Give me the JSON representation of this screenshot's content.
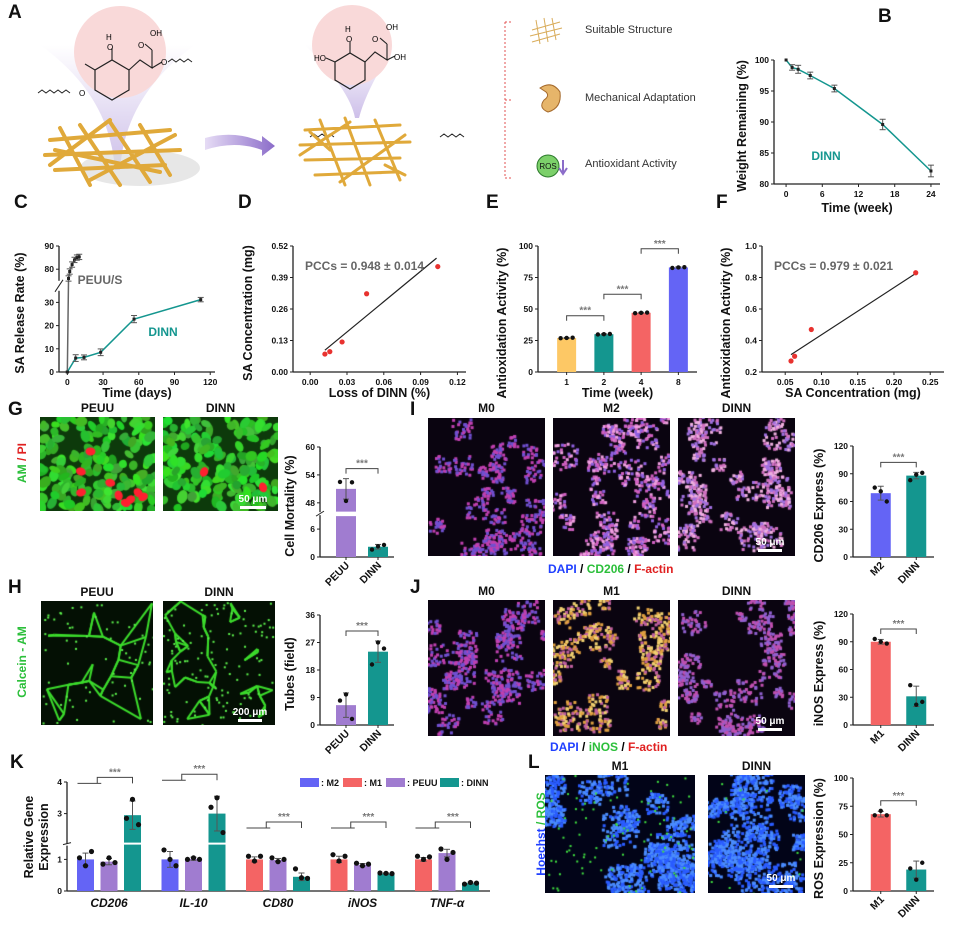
{
  "panel_labels": {
    "A": "A",
    "B": "B",
    "C": "C",
    "D": "D",
    "E": "E",
    "F": "F",
    "G": "G",
    "H": "H",
    "I": "I",
    "J": "J",
    "K": "K",
    "L": "L"
  },
  "colors": {
    "teal": "#14968f",
    "purple": "#a07cd0",
    "blue": "#6464f5",
    "red": "#f46464",
    "yellow": "#fdc865",
    "gray": "#666666",
    "scatter_red": "#e8322f",
    "green_text": "#2bbf3a",
    "red_text": "#e02020",
    "blue_text": "#2040ff"
  },
  "panel_A": {
    "molecule_before_atoms": [
      "H",
      "O",
      "OH",
      "O",
      "O",
      "O"
    ],
    "molecule_after_atoms": [
      "H",
      "O",
      "OH",
      "O",
      "OH",
      "HO"
    ],
    "features": [
      {
        "label": "Suitable Structure",
        "icon": "scaffold-icon"
      },
      {
        "label": "Mechanical Adaptation",
        "icon": "ear-icon"
      },
      {
        "label": "Antioxidant Activity",
        "icon": "ros-icon",
        "badge": "ROS"
      }
    ]
  },
  "micrographs": {
    "G": {
      "titles": [
        "PEUU",
        "DINN"
      ],
      "stain": [
        "AM",
        " / ",
        "PI"
      ],
      "scale_bar": "50 μm"
    },
    "H": {
      "titles": [
        "PEUU",
        "DINN"
      ],
      "stain": "Calcein - AM",
      "scale_bar": "200 μm"
    },
    "I": {
      "titles": [
        "M0",
        "M2",
        "DINN"
      ],
      "legend": [
        "DAPI",
        " / ",
        "CD206",
        " / ",
        "F-actin"
      ],
      "scale_bar": "50 μm"
    },
    "J": {
      "titles": [
        "M0",
        "M1",
        "DINN"
      ],
      "legend": [
        "DAPI",
        " / ",
        "iNOS",
        " / ",
        "F-actin"
      ],
      "scale_bar": "50 μm"
    },
    "L": {
      "titles": [
        "M1",
        "DINN"
      ],
      "stain": [
        "Hoechst",
        " / ",
        "ROS"
      ],
      "scale_bar": "50 μm"
    }
  },
  "chart_data": [
    {
      "id": "B",
      "type": "line",
      "xlabel": "Time (week)",
      "ylabel": "Weight Remaining (%)",
      "xlim": [
        0,
        24
      ],
      "ylim": [
        80,
        100
      ],
      "xticks": [
        0,
        6,
        12,
        18,
        24
      ],
      "yticks": [
        80,
        85,
        90,
        95,
        100
      ],
      "series": [
        {
          "name": "DINN",
          "color": "#14968f",
          "x": [
            0,
            1,
            2,
            4,
            8,
            16,
            24
          ],
          "y": [
            100,
            98.8,
            98.5,
            97.5,
            95.4,
            89.6,
            82.1
          ],
          "err": [
            0,
            0.2,
            0.4,
            0.3,
            0.3,
            0.6,
            0.7
          ]
        }
      ]
    },
    {
      "id": "C",
      "type": "line",
      "xlabel": "Time (days)",
      "ylabel": "SA Release Rate (%)",
      "xlim": [
        0,
        120
      ],
      "ybreak": [
        [
          0,
          35
        ],
        [
          75,
          90
        ]
      ],
      "xticks": [
        0,
        30,
        60,
        90,
        120
      ],
      "yticks": [
        0,
        10,
        20,
        30,
        80,
        90
      ],
      "series": [
        {
          "name": "PEUU/S",
          "color": "#666666",
          "x": [
            0,
            1,
            2,
            4,
            6,
            8,
            10
          ],
          "y": [
            0,
            76,
            79,
            82,
            84,
            85,
            85.3
          ],
          "err": [
            0,
            0.5,
            0.5,
            0.5,
            0.5,
            0.5,
            0.5
          ]
        },
        {
          "name": "DINN",
          "color": "#14968f",
          "x": [
            0,
            7,
            14,
            28,
            56,
            112
          ],
          "y": [
            0,
            6,
            6.3,
            8.5,
            22.8,
            31.2
          ],
          "err": [
            0,
            0.8,
            0.4,
            0.8,
            0.9,
            0.3
          ]
        }
      ]
    },
    {
      "id": "D",
      "type": "scatter",
      "xlabel": "Loss of DINN (%)",
      "ylabel": "SA Concentration (mg)",
      "xlim": [
        0,
        0.12
      ],
      "ylim": [
        0,
        0.52
      ],
      "xticks": [
        0.0,
        0.03,
        0.06,
        0.09,
        0.12
      ],
      "yticks": [
        0.0,
        0.13,
        0.26,
        0.39,
        0.52
      ],
      "tick_decimals": 2,
      "annotation": "PCCs = 0.948 ± 0.014",
      "points": {
        "x": [
          0.012,
          0.016,
          0.026,
          0.046,
          0.104
        ],
        "y": [
          0.074,
          0.084,
          0.124,
          0.323,
          0.435
        ]
      },
      "fit": {
        "x": [
          0.012,
          0.103
        ],
        "y": [
          0.09,
          0.47
        ]
      }
    },
    {
      "id": "E",
      "type": "bar",
      "xlabel": "Time (week)",
      "ylabel": "Antioxidation Activity (%)",
      "ylim": [
        0,
        100
      ],
      "yticks": [
        0,
        25,
        50,
        75,
        100
      ],
      "categories": [
        "1",
        "2",
        "4",
        "8"
      ],
      "values": [
        27,
        30,
        47,
        83
      ],
      "sd": [
        0.4,
        0.4,
        0.4,
        0.5
      ],
      "colors": [
        "#fdc865",
        "#14968f",
        "#f46464",
        "#6464f5"
      ],
      "replicates": [
        [
          26.8,
          27,
          27.2
        ],
        [
          29.8,
          30,
          30.2
        ],
        [
          46.7,
          47,
          47.2
        ],
        [
          82.6,
          83,
          83.2
        ]
      ],
      "comparisons": [
        {
          "from": 0,
          "to": 1,
          "label": "***"
        },
        {
          "from": 1,
          "to": 2,
          "label": "***"
        },
        {
          "from": 2,
          "to": 3,
          "label": "***"
        }
      ]
    },
    {
      "id": "F",
      "type": "scatter",
      "xlabel": "SA Concentration (mg)",
      "ylabel": "Antioxidation Activity (%)",
      "xlim": [
        0.05,
        0.25
      ],
      "ylim": [
        0.2,
        1.0
      ],
      "xticks": [
        0.05,
        0.1,
        0.15,
        0.2,
        0.25
      ],
      "yticks": [
        0.2,
        0.4,
        0.6,
        0.8,
        1.0
      ],
      "tick_decimals": 2,
      "ytick_decimals": 1,
      "annotation": "PCCs = 0.979 ± 0.021",
      "points": {
        "x": [
          0.058,
          0.063,
          0.086,
          0.23
        ],
        "y": [
          0.27,
          0.3,
          0.47,
          0.83
        ]
      },
      "fit": {
        "x": [
          0.058,
          0.228
        ],
        "y": [
          0.31,
          0.82
        ]
      }
    },
    {
      "id": "G",
      "type": "bar",
      "ylabel": "Cell Mortality (%)",
      "ybreak": [
        [
          0,
          9
        ],
        [
          46,
          60
        ]
      ],
      "yticks": [
        0,
        6,
        48,
        54,
        60
      ],
      "categories": [
        "PEUU",
        "DINN"
      ],
      "values": [
        51,
        2.2
      ],
      "sd": [
        2.2,
        0.5
      ],
      "colors": [
        "#a07cd0",
        "#14968f"
      ],
      "replicates": [
        [
          52.5,
          48.4,
          52.4
        ],
        [
          1.6,
          2.3,
          2.6
        ]
      ],
      "comparisons": [
        {
          "from": 0,
          "to": 1,
          "label": "***"
        }
      ]
    },
    {
      "id": "H",
      "type": "bar",
      "ylabel": "Tubes (field)",
      "ylim": [
        0,
        36
      ],
      "yticks": [
        0,
        9,
        18,
        27,
        36
      ],
      "categories": [
        "PEUU",
        "DINN"
      ],
      "values": [
        6.5,
        24
      ],
      "sd": [
        4,
        3.5
      ],
      "colors": [
        "#a07cd0",
        "#14968f"
      ],
      "replicates": [
        [
          8,
          10,
          2
        ],
        [
          19.8,
          27,
          25
        ]
      ],
      "comparisons": [
        {
          "from": 0,
          "to": 1,
          "label": "***"
        }
      ]
    },
    {
      "id": "I",
      "type": "bar",
      "ylabel": "CD206 Express (%)",
      "ylim": [
        0,
        120
      ],
      "yticks": [
        0,
        30,
        60,
        90,
        120
      ],
      "categories": [
        "M2",
        "DINN"
      ],
      "values": [
        69,
        88
      ],
      "sd": [
        7.5,
        3.5
      ],
      "colors": [
        "#6464f5",
        "#14968f"
      ],
      "replicates": [
        [
          75,
          71,
          60
        ],
        [
          83,
          89,
          91
        ]
      ],
      "comparisons": [
        {
          "from": 0,
          "to": 1,
          "label": "***"
        }
      ]
    },
    {
      "id": "J",
      "type": "bar",
      "ylabel": "iNOS Express (%)",
      "ylim": [
        0,
        120
      ],
      "yticks": [
        0,
        30,
        60,
        90,
        120
      ],
      "categories": [
        "M1",
        "DINN"
      ],
      "values": [
        90,
        31
      ],
      "sd": [
        2.5,
        11
      ],
      "colors": [
        "#f46464",
        "#14968f"
      ],
      "replicates": [
        [
          93,
          90,
          88
        ],
        [
          43,
          22,
          25
        ]
      ],
      "comparisons": [
        {
          "from": 0,
          "to": 1,
          "label": "***"
        }
      ]
    },
    {
      "id": "K",
      "type": "grouped_bar",
      "ylabel": [
        "Relative Gene",
        "Expression"
      ],
      "ybreak": [
        [
          0,
          1.5
        ],
        [
          2.05,
          4
        ]
      ],
      "yticks": [
        0,
        1,
        3,
        4
      ],
      "legend": [
        {
          "name": "M2",
          "label": ": M2",
          "color": "#6464f5"
        },
        {
          "name": "M1",
          "label": ": M1",
          "color": "#f46464"
        },
        {
          "name": "PEUU",
          "label": ": PEUU",
          "color": "#a07cd0"
        },
        {
          "name": "DINN",
          "label": ": DINN",
          "color": "#14968f"
        }
      ],
      "groups": [
        {
          "label": "CD206",
          "series": [
            "M2",
            "PEUU",
            "DINN"
          ],
          "values": [
            1.0,
            0.93,
            2.95
          ],
          "sd": [
            0.2,
            0.1,
            0.45
          ],
          "replicates": [
            [
              1.05,
              0.8,
              1.25
            ],
            [
              0.85,
              1.05,
              0.9
            ],
            [
              2.85,
              3.45,
              2.65
            ]
          ],
          "comparison": "***"
        },
        {
          "label": "IL-10",
          "series": [
            "M2",
            "PEUU",
            "DINN"
          ],
          "values": [
            1.0,
            1.02,
            3.0
          ],
          "sd": [
            0.25,
            0.05,
            0.55
          ],
          "replicates": [
            [
              1.3,
              1.0,
              0.8
            ],
            [
              1.0,
              1.05,
              1.0
            ],
            [
              3.2,
              3.5,
              2.4
            ]
          ],
          "comparison": "***"
        },
        {
          "label": "CD80",
          "series": [
            "M1",
            "PEUU",
            "DINN"
          ],
          "values": [
            1.0,
            0.98,
            0.45
          ],
          "sd": [
            0.08,
            0.05,
            0.12
          ],
          "replicates": [
            [
              1.1,
              0.95,
              1.1
            ],
            [
              1.05,
              0.93,
              1.0
            ],
            [
              0.7,
              0.42,
              0.4
            ]
          ],
          "comparison": "***"
        },
        {
          "label": "iNOS",
          "series": [
            "M1",
            "PEUU",
            "DINN"
          ],
          "values": [
            1.0,
            0.83,
            0.55
          ],
          "sd": [
            0.1,
            0.04,
            0.02
          ],
          "replicates": [
            [
              1.15,
              0.95,
              1.1
            ],
            [
              0.88,
              0.8,
              0.85
            ],
            [
              0.57,
              0.56,
              0.55
            ]
          ],
          "comparison": "***"
        },
        {
          "label": "TNF-α",
          "series": [
            "M1",
            "PEUU",
            "DINN"
          ],
          "values": [
            1.0,
            1.2,
            0.25
          ],
          "sd": [
            0.06,
            0.12,
            0.03
          ],
          "replicates": [
            [
              1.1,
              1.0,
              1.08
            ],
            [
              1.33,
              1.0,
              1.22
            ],
            [
              0.22,
              0.27,
              0.25
            ]
          ],
          "comparison": "***"
        }
      ]
    },
    {
      "id": "L",
      "type": "bar",
      "ylabel": "ROS Expression (%)",
      "ylim": [
        0,
        100
      ],
      "yticks": [
        0,
        25,
        50,
        75,
        100
      ],
      "categories": [
        "M1",
        "DINN"
      ],
      "values": [
        68,
        19
      ],
      "sd": [
        2.5,
        7.5
      ],
      "colors": [
        "#f46464",
        "#14968f"
      ],
      "replicates": [
        [
          67,
          71,
          67
        ],
        [
          20,
          10,
          25
        ]
      ],
      "comparisons": [
        {
          "from": 0,
          "to": 1,
          "label": "***"
        }
      ]
    }
  ]
}
